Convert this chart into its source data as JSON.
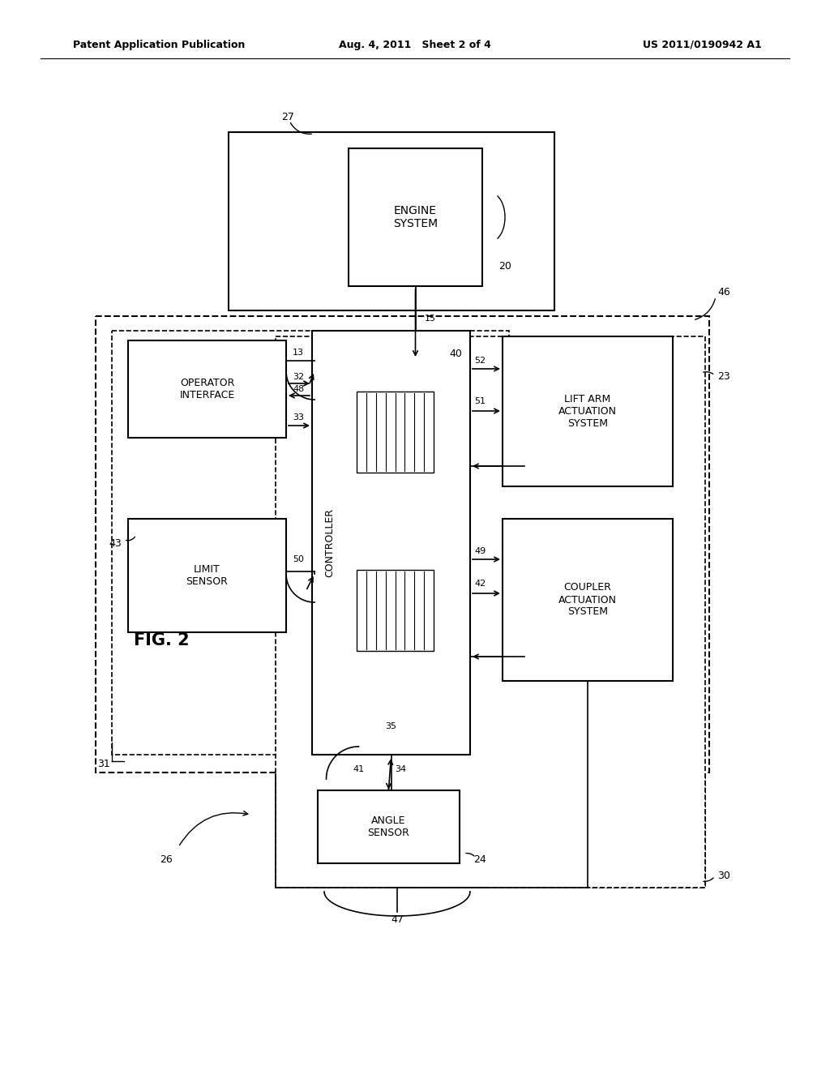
{
  "bg_color": "#ffffff",
  "header_left": "Patent Application Publication",
  "header_mid": "Aug. 4, 2011   Sheet 2 of 4",
  "header_right": "US 2011/0190942 A1",
  "fig_label": "FIG. 2"
}
